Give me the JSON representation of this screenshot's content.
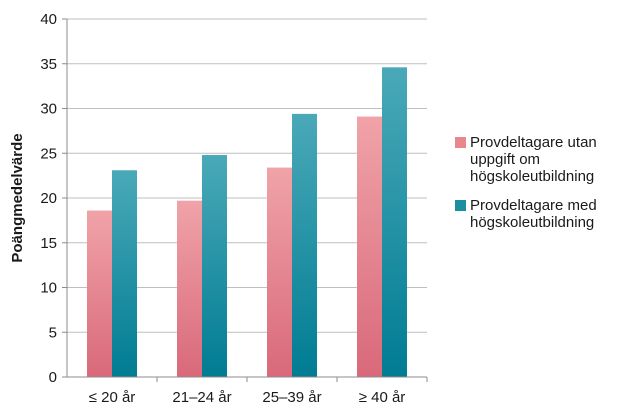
{
  "chart_data": {
    "type": "bar",
    "title": "",
    "xlabel": "",
    "ylabel": "Poängmedelvärde",
    "ylim": [
      0,
      40
    ],
    "yticks": [
      0,
      5,
      10,
      15,
      20,
      25,
      30,
      35,
      40
    ],
    "grid": true,
    "legend_position": "right",
    "categories": [
      "≤ 20 år",
      "21–24 år",
      "25–39 år",
      "≥ 40 år"
    ],
    "series": [
      {
        "name": "Provdeltagare utan uppgift om högskoleutbildning",
        "legend_lines": [
          "Provdeltagare utan",
          "uppgift om",
          "högskoleutbildning"
        ],
        "color": "#e8878c",
        "gradient": [
          "#f0a3a8",
          "#d9697a"
        ],
        "values": [
          18.6,
          19.7,
          23.4,
          29.1
        ]
      },
      {
        "name": "Provdeltagare med högskoleutbildning",
        "legend_lines": [
          "Provdeltagare med",
          "högskoleutbildning"
        ],
        "color": "#1a8fa0",
        "gradient": [
          "#4aa9b8",
          "#007c93"
        ],
        "values": [
          23.1,
          24.8,
          29.4,
          34.6
        ]
      }
    ]
  }
}
